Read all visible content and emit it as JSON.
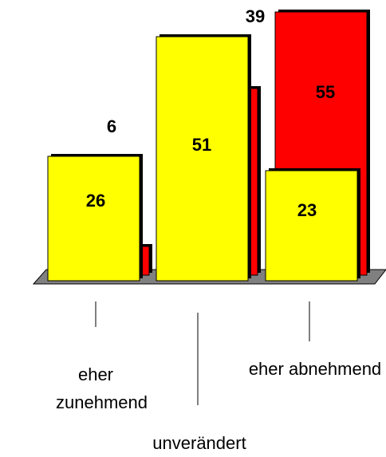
{
  "chart_data": {
    "type": "bar3d",
    "categories": [
      "eher zunehmend",
      "unverändert",
      "eher abnehmend"
    ],
    "series": [
      {
        "color": "#ffff00",
        "values": [
          26,
          51,
          23
        ]
      },
      {
        "color": "#ff0000",
        "values": [
          6,
          39,
          55
        ]
      }
    ]
  }
}
